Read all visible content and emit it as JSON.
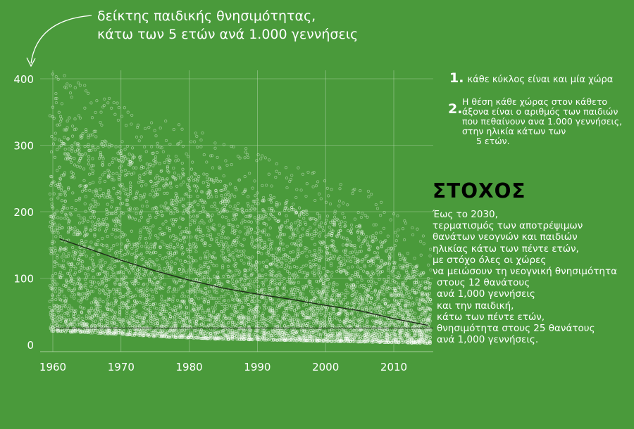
{
  "title": {
    "line1": "δείκτης παιδικής θνησιμότητας,",
    "line2": "κάτω των 5 ετών  ανά 1.000 γεννήσεις"
  },
  "notes": [
    {
      "num": "1.",
      "text": "κάθε κύκλος είναι και μία χώρα"
    },
    {
      "num": "2.",
      "lines": [
        "Η θέση κάθε χώρας στον κάθετο",
        "άξονα είναι ο αριθμός των παιδιών",
        "που πεθαίνουν ανα 1.000 γεννήσεις,",
        " στην ηλικία κάτων των",
        "5 ετών."
      ]
    }
  ],
  "goal": {
    "title": "ΣΤΟΧΟΣ",
    "lines": [
      "Έως το 2030,",
      "τερματισμός των αποτρέψιμων",
      "θανάτων νεογνών και παιδιών",
      "ηλικίας κάτω των πέντε ετών,",
      "με στόχο όλες οι χώρες",
      "να μειώσουν τη νεογνική θνησιμότητα",
      "στους  12 θανάτους",
      "ανά 1,000 γεννήσεις",
      "και την παιδική,",
      "κάτω των πέντε ετών,",
      "θνησιμότητα  στους 25 θανάτους",
      "ανά 1,000  γεννήσεις."
    ]
  },
  "colors": {
    "background": "#4a9a3b",
    "dots": "#ffffff",
    "trend": "#1e2a1a",
    "grid": "#c8e0c0"
  },
  "chart_data": {
    "type": "scatter",
    "xlim": [
      1958,
      2016
    ],
    "ylim": [
      0,
      400
    ],
    "x_ticks": [
      1960,
      1970,
      1980,
      1990,
      2000,
      2010
    ],
    "y_ticks": [
      0,
      100,
      200,
      300,
      400
    ],
    "grid": true,
    "target_line": 25,
    "trend": {
      "x": [
        1961,
        1965,
        1970,
        1975,
        1980,
        1985,
        1990,
        1995,
        2000,
        2005,
        2010,
        2015
      ],
      "y": [
        159,
        145,
        127,
        111,
        97,
        85,
        76,
        68,
        59,
        51,
        39,
        29
      ]
    },
    "envelope": {
      "x": [
        1960,
        1965,
        1970,
        1975,
        1980,
        1985,
        1990,
        1995,
        2000,
        2005,
        2010,
        2015
      ],
      "upper": [
        360,
        330,
        300,
        290,
        270,
        250,
        230,
        210,
        195,
        180,
        150,
        100
      ],
      "lower": [
        20,
        18,
        15,
        12,
        10,
        8,
        7,
        6,
        5,
        4,
        3,
        2
      ]
    }
  }
}
